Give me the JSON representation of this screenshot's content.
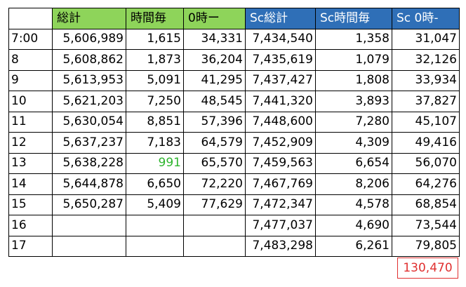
{
  "headers": [
    "",
    "総計",
    "時間毎",
    "0時ー",
    "Sc総計",
    "Sc時間毎",
    "Sc 0時-"
  ],
  "header_colors": {
    "green": "#8ed45a",
    "blue": "#2f6fb7",
    "highlight_text": "#2eb52e",
    "total_red": "#e03030"
  },
  "rows": [
    {
      "time": "7:00",
      "total": "5,606,989",
      "hourly": "1,615",
      "since0": "34,331",
      "sc_total": "7,434,540",
      "sc_hourly": "1,358",
      "sc_since0": "31,047"
    },
    {
      "time": "8",
      "total": "5,608,862",
      "hourly": "1,873",
      "since0": "36,204",
      "sc_total": "7,435,619",
      "sc_hourly": "1,079",
      "sc_since0": "32,126"
    },
    {
      "time": "9",
      "total": "5,613,953",
      "hourly": "5,091",
      "since0": "41,295",
      "sc_total": "7,437,427",
      "sc_hourly": "1,808",
      "sc_since0": "33,934"
    },
    {
      "time": "10",
      "total": "5,621,203",
      "hourly": "7,250",
      "since0": "48,545",
      "sc_total": "7,441,320",
      "sc_hourly": "3,893",
      "sc_since0": "37,827"
    },
    {
      "time": "11",
      "total": "5,630,054",
      "hourly": "8,851",
      "since0": "57,396",
      "sc_total": "7,448,600",
      "sc_hourly": "7,280",
      "sc_since0": "45,107"
    },
    {
      "time": "12",
      "total": "5,637,237",
      "hourly": "7,183",
      "since0": "64,579",
      "sc_total": "7,452,909",
      "sc_hourly": "4,309",
      "sc_since0": "49,416"
    },
    {
      "time": "13",
      "total": "5,638,228",
      "hourly": "991",
      "since0": "65,570",
      "sc_total": "7,459,563",
      "sc_hourly": "6,654",
      "sc_since0": "56,070"
    },
    {
      "time": "14",
      "total": "5,644,878",
      "hourly": "6,650",
      "since0": "72,220",
      "sc_total": "7,467,769",
      "sc_hourly": "8,206",
      "sc_since0": "64,276"
    },
    {
      "time": "15",
      "total": "5,650,287",
      "hourly": "5,409",
      "since0": "77,629",
      "sc_total": "7,472,347",
      "sc_hourly": "4,578",
      "sc_since0": "68,854"
    },
    {
      "time": "16",
      "total": "",
      "hourly": "",
      "since0": "",
      "sc_total": "7,477,037",
      "sc_hourly": "4,690",
      "sc_since0": "73,544"
    },
    {
      "time": "17",
      "total": "",
      "hourly": "",
      "since0": "",
      "sc_total": "7,483,298",
      "sc_hourly": "6,261",
      "sc_since0": "79,805"
    }
  ],
  "total_box": "130,470"
}
